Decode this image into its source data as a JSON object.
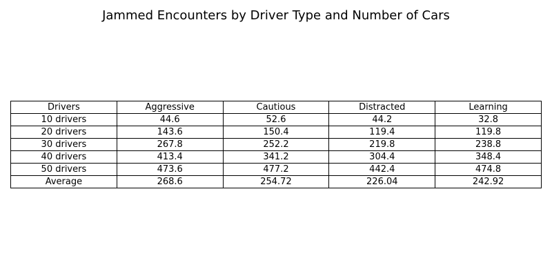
{
  "chart_data": {
    "type": "table",
    "title": "Jammed Encounters by Driver Type and Number of Cars",
    "columns": [
      "Drivers",
      "Aggressive",
      "Cautious",
      "Distracted",
      "Learning"
    ],
    "rows": [
      [
        "10 drivers",
        "44.6",
        "52.6",
        "44.2",
        "32.8"
      ],
      [
        "20 drivers",
        "143.6",
        "150.4",
        "119.4",
        "119.8"
      ],
      [
        "30 drivers",
        "267.8",
        "252.2",
        "219.8",
        "238.8"
      ],
      [
        "40 drivers",
        "413.4",
        "341.2",
        "304.4",
        "348.4"
      ],
      [
        "50 drivers",
        "473.6",
        "477.2",
        "442.4",
        "474.8"
      ],
      [
        "Average",
        "268.6",
        "254.72",
        "226.04",
        "242.92"
      ]
    ]
  }
}
